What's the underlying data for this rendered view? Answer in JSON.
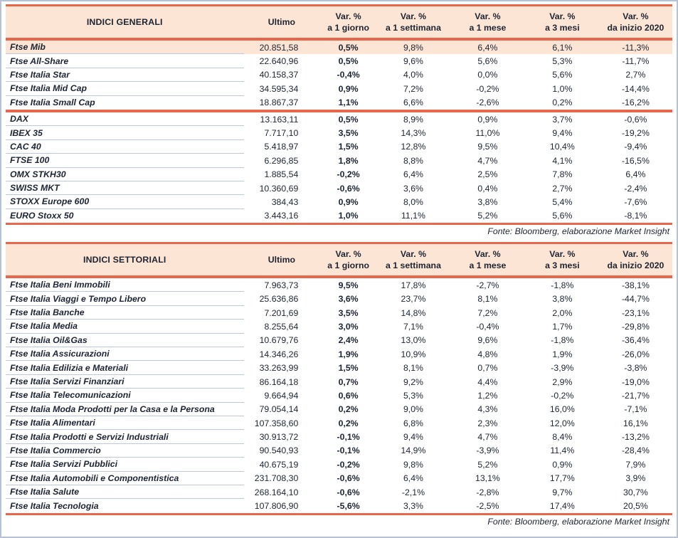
{
  "source_note": "Fonte: Bloomberg, elaborazione Market Insight",
  "colors": {
    "accent_line": "#e7674c",
    "header_bg": "#fce5d4",
    "frame_border": "#b6c2d6",
    "row_divider": "#bcc9da",
    "text": "#1d2433"
  },
  "columns": {
    "ultimo": "Ultimo",
    "var_top": "Var. %",
    "var_subs": [
      "a 1 giorno",
      "a 1 settimana",
      "a 1 mese",
      "a 3 mesi",
      "da inizio 2020"
    ]
  },
  "tables": [
    {
      "title": "INDICI GENERALI",
      "highlight_row": 0,
      "group_break_after": 4,
      "rows": [
        {
          "name": "Ftse Mib",
          "values": [
            "20.851,58",
            "0,5%",
            "9,8%",
            "6,4%",
            "6,1%",
            "-11,3%"
          ]
        },
        {
          "name": "Ftse All-Share",
          "values": [
            "22.640,96",
            "0,5%",
            "9,6%",
            "5,6%",
            "5,3%",
            "-11,7%"
          ]
        },
        {
          "name": "Ftse Italia Star",
          "values": [
            "40.158,37",
            "-0,4%",
            "4,0%",
            "0,0%",
            "5,6%",
            "2,7%"
          ]
        },
        {
          "name": "Ftse Italia Mid Cap",
          "values": [
            "34.595,34",
            "0,9%",
            "7,2%",
            "-0,2%",
            "1,0%",
            "-14,4%"
          ]
        },
        {
          "name": "Ftse Italia Small Cap",
          "values": [
            "18.867,37",
            "1,1%",
            "6,6%",
            "-2,6%",
            "0,2%",
            "-16,2%"
          ]
        },
        {
          "name": "DAX",
          "values": [
            "13.163,11",
            "0,5%",
            "8,9%",
            "0,9%",
            "3,7%",
            "-0,6%"
          ]
        },
        {
          "name": "IBEX 35",
          "values": [
            "7.717,10",
            "3,5%",
            "14,3%",
            "11,0%",
            "9,4%",
            "-19,2%"
          ]
        },
        {
          "name": "CAC 40",
          "values": [
            "5.418,97",
            "1,5%",
            "12,8%",
            "9,5%",
            "10,4%",
            "-9,4%"
          ]
        },
        {
          "name": "FTSE 100",
          "values": [
            "6.296,85",
            "1,8%",
            "8,8%",
            "4,7%",
            "4,1%",
            "-16,5%"
          ]
        },
        {
          "name": "OMX STKH30",
          "values": [
            "1.885,54",
            "-0,2%",
            "6,4%",
            "2,5%",
            "7,8%",
            "6,4%"
          ]
        },
        {
          "name": "SWISS MKT",
          "values": [
            "10.360,69",
            "-0,6%",
            "3,6%",
            "0,4%",
            "2,7%",
            "-2,4%"
          ]
        },
        {
          "name": "STOXX Europe 600",
          "values": [
            "384,43",
            "0,9%",
            "8,0%",
            "3,8%",
            "5,4%",
            "-7,6%"
          ]
        },
        {
          "name": "EURO Stoxx 50",
          "values": [
            "3.443,16",
            "1,0%",
            "11,1%",
            "5,2%",
            "5,6%",
            "-8,1%"
          ]
        }
      ]
    },
    {
      "title": "INDICI SETTORIALI",
      "rows": [
        {
          "name": "Ftse Italia Beni Immobili",
          "values": [
            "7.963,73",
            "9,5%",
            "17,8%",
            "-2,7%",
            "-1,8%",
            "-38,1%"
          ]
        },
        {
          "name": "Ftse Italia Viaggi e Tempo Libero",
          "values": [
            "25.636,86",
            "3,6%",
            "23,7%",
            "8,1%",
            "3,8%",
            "-44,7%"
          ]
        },
        {
          "name": "Ftse Italia Banche",
          "values": [
            "7.201,69",
            "3,5%",
            "14,8%",
            "7,2%",
            "2,0%",
            "-23,1%"
          ]
        },
        {
          "name": "Ftse Italia Media",
          "values": [
            "8.255,64",
            "3,0%",
            "7,1%",
            "-0,4%",
            "1,7%",
            "-29,8%"
          ]
        },
        {
          "name": "Ftse Italia Oil&Gas",
          "values": [
            "10.679,76",
            "2,4%",
            "13,0%",
            "9,6%",
            "-1,8%",
            "-36,4%"
          ]
        },
        {
          "name": "Ftse Italia Assicurazioni",
          "values": [
            "14.346,26",
            "1,9%",
            "10,9%",
            "4,8%",
            "1,9%",
            "-26,0%"
          ]
        },
        {
          "name": "Ftse Italia Edilizia e Materiali",
          "values": [
            "33.263,99",
            "1,5%",
            "8,1%",
            "0,7%",
            "-3,9%",
            "-3,8%"
          ]
        },
        {
          "name": "Ftse Italia Servizi Finanziari",
          "values": [
            "86.164,18",
            "0,7%",
            "9,2%",
            "4,4%",
            "2,9%",
            "-19,0%"
          ]
        },
        {
          "name": "Ftse Italia Telecomunicazioni",
          "values": [
            "9.664,94",
            "0,6%",
            "5,3%",
            "1,2%",
            "-0,2%",
            "-21,7%"
          ]
        },
        {
          "name": "Ftse Italia Moda Prodotti per la Casa e la Persona",
          "values": [
            "79.054,14",
            "0,2%",
            "9,0%",
            "4,3%",
            "16,0%",
            "-7,1%"
          ]
        },
        {
          "name": "Ftse Italia Alimentari",
          "values": [
            "107.358,60",
            "0,2%",
            "6,8%",
            "2,3%",
            "12,0%",
            "16,1%"
          ]
        },
        {
          "name": "Ftse Italia Prodotti e Servizi Industriali",
          "values": [
            "30.913,72",
            "-0,1%",
            "9,4%",
            "4,7%",
            "8,4%",
            "-13,2%"
          ]
        },
        {
          "name": "Ftse Italia Commercio",
          "values": [
            "90.540,93",
            "-0,1%",
            "14,9%",
            "-3,9%",
            "11,4%",
            "-28,4%"
          ]
        },
        {
          "name": "Ftse Italia Servizi Pubblici",
          "values": [
            "40.675,19",
            "-0,2%",
            "9,8%",
            "5,2%",
            "0,9%",
            "7,9%"
          ]
        },
        {
          "name": "Ftse Italia Automobili e Componentistica",
          "values": [
            "231.708,30",
            "-0,6%",
            "6,4%",
            "13,1%",
            "17,7%",
            "3,9%"
          ]
        },
        {
          "name": "Ftse Italia Salute",
          "values": [
            "268.164,10",
            "-0,6%",
            "-2,1%",
            "-2,8%",
            "9,7%",
            "30,7%"
          ]
        },
        {
          "name": "Ftse Italia Tecnologia",
          "values": [
            "107.806,90",
            "-5,6%",
            "3,3%",
            "-2,5%",
            "17,4%",
            "20,5%"
          ]
        }
      ]
    }
  ]
}
